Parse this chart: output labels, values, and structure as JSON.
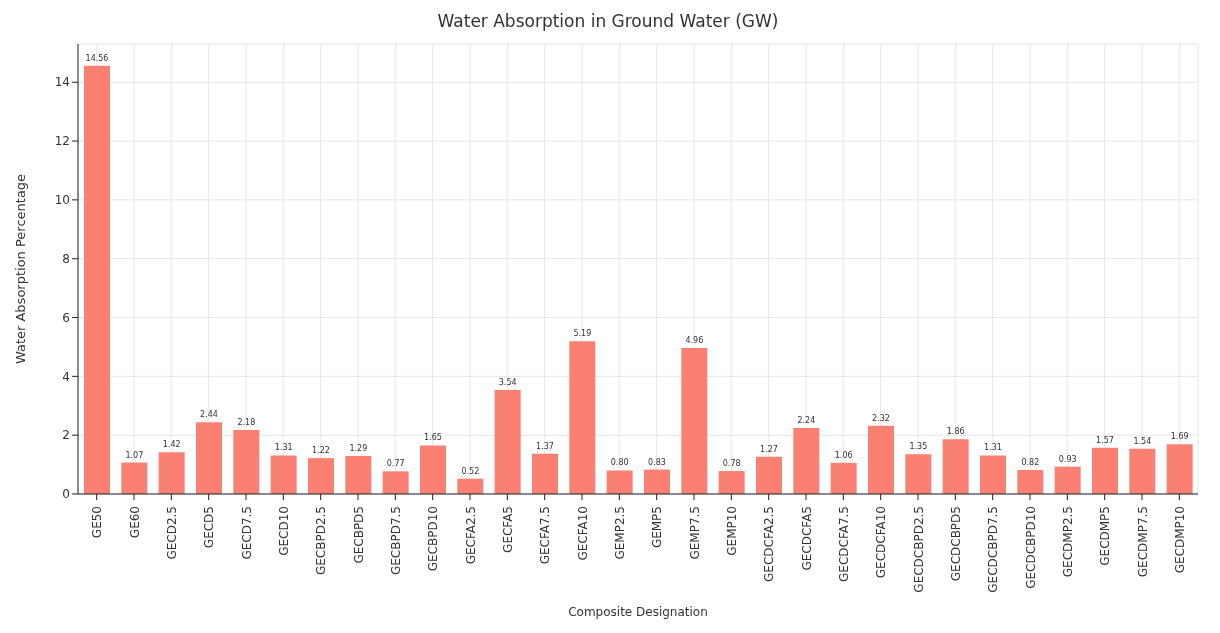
{
  "chart_data": {
    "type": "bar",
    "title": "Water Absorption in Ground Water (GW)",
    "xlabel": "Composite Designation",
    "ylabel": "Water Absorption Percentage",
    "categories": [
      "GE50",
      "GE60",
      "GECD2.5",
      "GECD5",
      "GECD7.5",
      "GECD10",
      "GECBPD2.5",
      "GECBPD5",
      "GECBPD7.5",
      "GECBPD10",
      "GECFA2.5",
      "GECFA5",
      "GECFA7.5",
      "GECFA10",
      "GEMP2.5",
      "GEMP5",
      "GEMP7.5",
      "GEMP10",
      "GECDCFA2.5",
      "GECDCFA5",
      "GECDCFA7.5",
      "GECDCFA10",
      "GECDCBPD2.5",
      "GECDCBPD5",
      "GECDCBPD7.5",
      "GECDCBPD10",
      "GECDMP2.5",
      "GECDMP5",
      "GECDMP7.5",
      "GECDMP10"
    ],
    "values": [
      14.56,
      1.07,
      1.42,
      2.44,
      2.18,
      1.31,
      1.22,
      1.29,
      0.77,
      1.65,
      0.52,
      3.54,
      1.37,
      5.19,
      0.8,
      0.83,
      4.96,
      0.78,
      1.27,
      2.24,
      1.06,
      2.32,
      1.35,
      1.86,
      1.31,
      0.82,
      0.93,
      1.57,
      1.54,
      1.69
    ],
    "value_labels": [
      "14.56",
      "1.07",
      "1.42",
      "2.44",
      "2.18",
      "1.31",
      "1.22",
      "1.29",
      "0.77",
      "1.65",
      "0.52",
      "3.54",
      "1.37",
      "5.19",
      "0.80",
      "0.83",
      "4.96",
      "0.78",
      "1.27",
      "2.24",
      "1.06",
      "2.32",
      "1.35",
      "1.86",
      "1.31",
      "0.82",
      "0.93",
      "1.57",
      "1.54",
      "1.69"
    ],
    "color": "#fa8072",
    "ylim": [
      0,
      15.3
    ],
    "yticks": [
      0,
      2,
      4,
      6,
      8,
      10,
      12,
      14
    ],
    "grid": true
  }
}
